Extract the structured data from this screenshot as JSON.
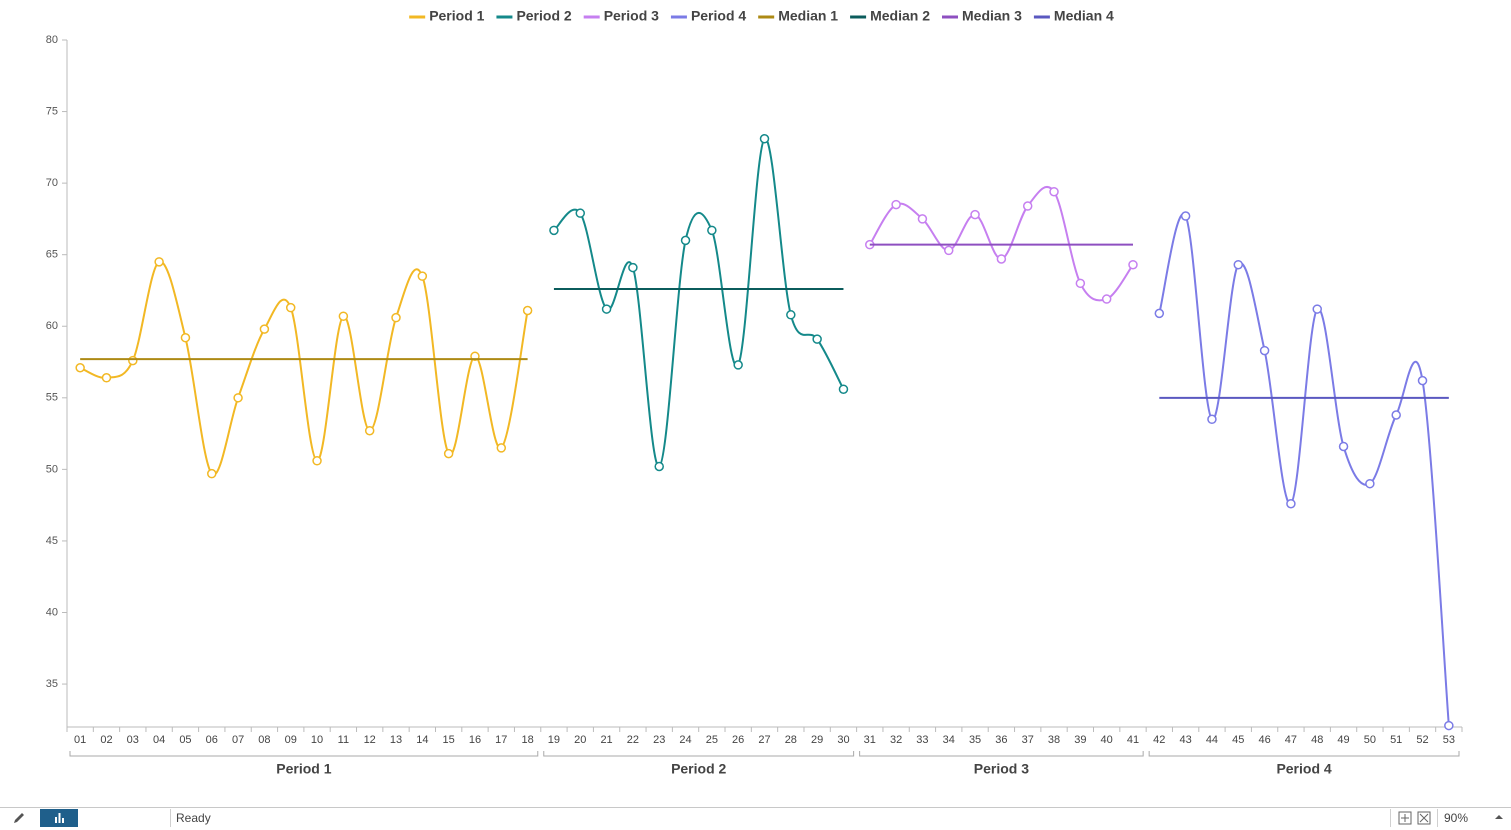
{
  "chart_data": {
    "type": "line",
    "smooth": true,
    "markers": true,
    "ylim": [
      32,
      80
    ],
    "yticks": [
      35,
      40,
      45,
      50,
      55,
      60,
      65,
      70,
      75,
      80
    ],
    "groups": [
      {
        "label": "Period 1",
        "categories": [
          "01",
          "02",
          "03",
          "04",
          "05",
          "06",
          "07",
          "08",
          "09",
          "10",
          "11",
          "12",
          "13",
          "14",
          "15",
          "16",
          "17",
          "18"
        ]
      },
      {
        "label": "Period 2",
        "categories": [
          "19",
          "20",
          "21",
          "22",
          "23",
          "24",
          "25",
          "26",
          "27",
          "28",
          "29",
          "30"
        ]
      },
      {
        "label": "Period 3",
        "categories": [
          "31",
          "32",
          "33",
          "34",
          "35",
          "36",
          "37",
          "38",
          "39",
          "40",
          "41"
        ]
      },
      {
        "label": "Period 4",
        "categories": [
          "42",
          "43",
          "44",
          "45",
          "46",
          "47",
          "48",
          "49",
          "50",
          "51",
          "52",
          "53"
        ]
      }
    ],
    "series": [
      {
        "name": "Period 1",
        "color": "#f2b824",
        "values": [
          57.1,
          56.4,
          57.6,
          64.5,
          59.2,
          49.7,
          55.0,
          59.8,
          61.3,
          50.6,
          60.7,
          52.7,
          60.6,
          63.5,
          51.1,
          57.9,
          51.5,
          61.1
        ]
      },
      {
        "name": "Period 2",
        "color": "#14898a",
        "values": [
          66.7,
          67.9,
          61.2,
          64.1,
          50.2,
          66.0,
          66.7,
          57.3,
          73.1,
          60.8,
          59.1,
          55.6
        ]
      },
      {
        "name": "Period 3",
        "color": "#c67ff0",
        "values": [
          65.7,
          68.5,
          67.5,
          65.3,
          67.8,
          64.7,
          68.4,
          69.4,
          63.0,
          61.9,
          64.3
        ]
      },
      {
        "name": "Period 4",
        "color": "#7b7be6",
        "values": [
          60.9,
          67.7,
          53.5,
          64.3,
          58.3,
          47.6,
          61.2,
          51.6,
          49.0,
          53.8,
          56.2,
          32.1
        ]
      },
      {
        "name": "Median 1",
        "color": "#ad8a14",
        "median": true,
        "values": [
          57.7,
          57.7,
          57.7,
          57.7,
          57.7,
          57.7,
          57.7,
          57.7,
          57.7,
          57.7,
          57.7,
          57.7,
          57.7,
          57.7,
          57.7,
          57.7,
          57.7,
          57.7
        ]
      },
      {
        "name": "Median 2",
        "color": "#0b5c5c",
        "median": true,
        "values": [
          62.6,
          62.6,
          62.6,
          62.6,
          62.6,
          62.6,
          62.6,
          62.6,
          62.6,
          62.6,
          62.6,
          62.6
        ]
      },
      {
        "name": "Median 3",
        "color": "#8e4fc0",
        "median": true,
        "values": [
          65.7,
          65.7,
          65.7,
          65.7,
          65.7,
          65.7,
          65.7,
          65.7,
          65.7,
          65.7,
          65.7
        ]
      },
      {
        "name": "Median 4",
        "color": "#5a58c0",
        "median": true,
        "values": [
          55.0,
          55.0,
          55.0,
          55.0,
          55.0,
          55.0,
          55.0,
          55.0,
          55.0,
          55.0,
          55.0,
          55.0
        ]
      }
    ]
  },
  "status_bar": {
    "status": "Ready",
    "zoom": "90%"
  }
}
